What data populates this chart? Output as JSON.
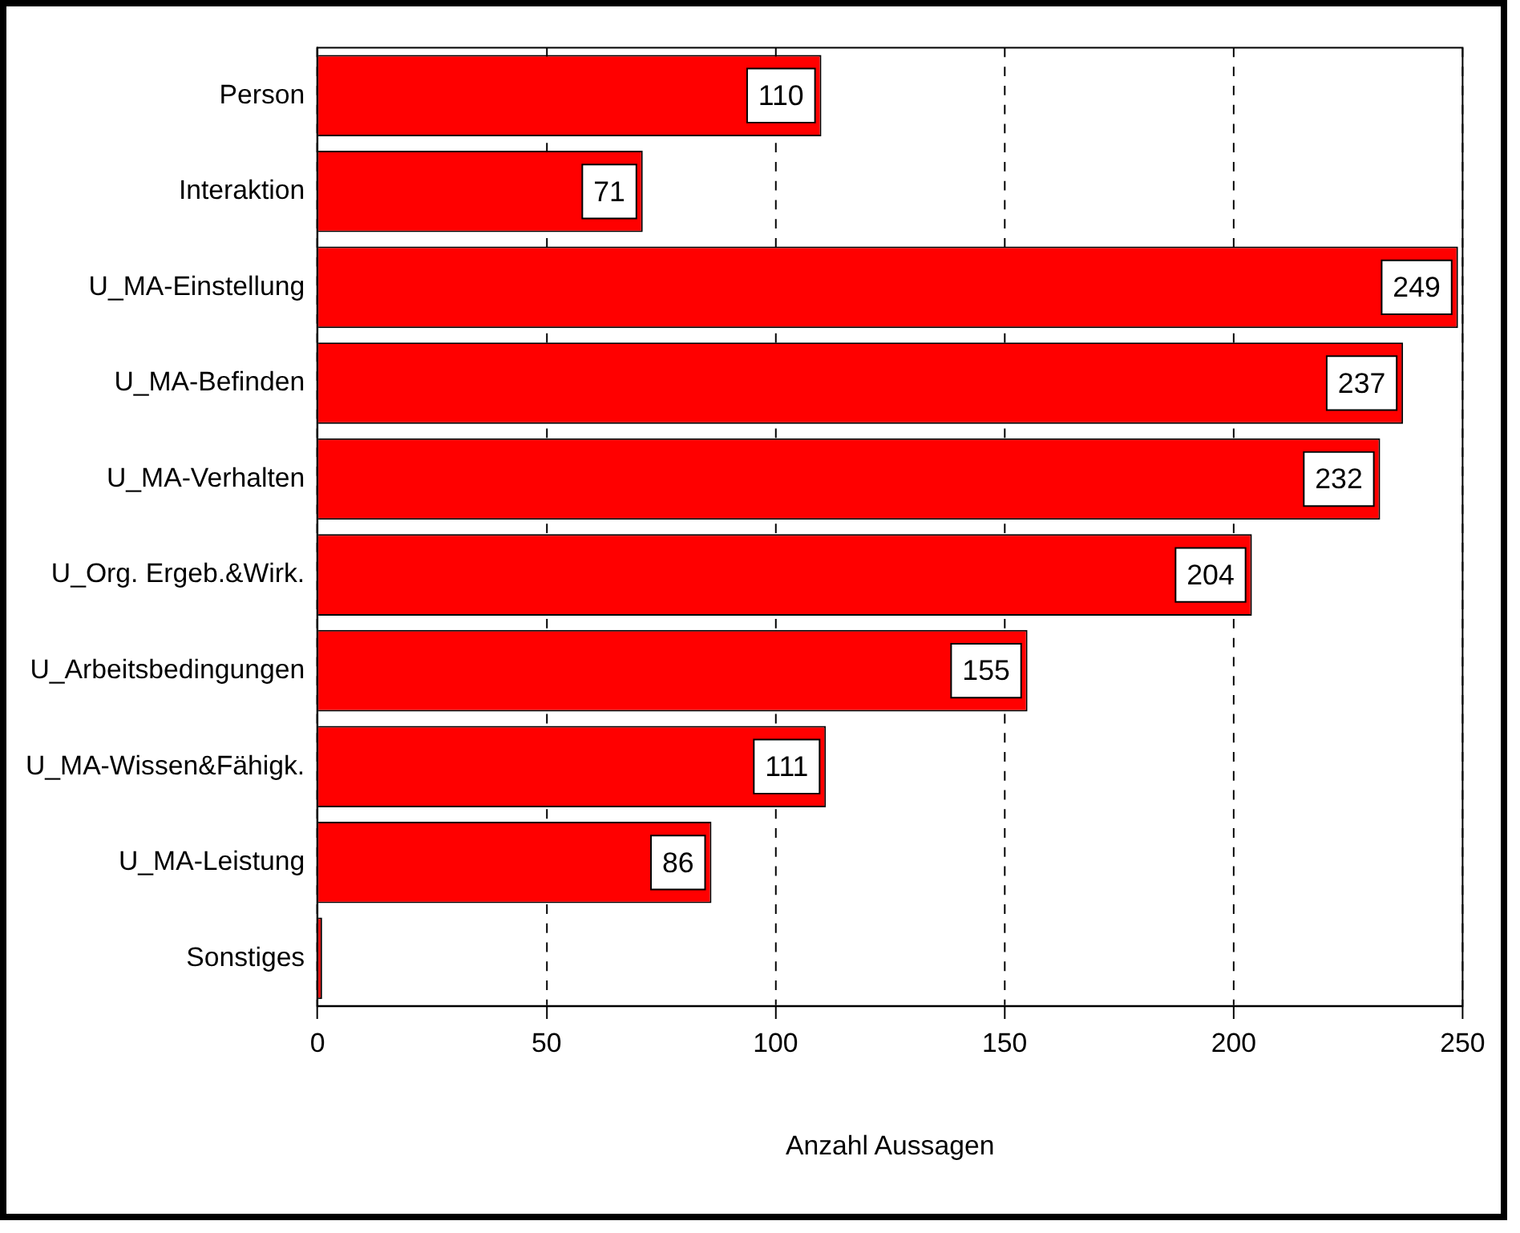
{
  "chart_data": {
    "type": "bar",
    "orientation": "horizontal",
    "xlabel": "Anzahl Aussagen",
    "categories": [
      "Person",
      "Interaktion",
      "U_MA-Einstellung",
      "U_MA-Befinden",
      "U_MA-Verhalten",
      "U_Org. Ergeb.&Wirk.",
      "U_Arbeitsbedingungen",
      "U_MA-Wissen&Fähigk.",
      "U_MA-Leistung",
      "Sonstiges"
    ],
    "values": [
      110,
      71,
      249,
      237,
      232,
      204,
      155,
      111,
      86,
      1
    ],
    "value_labels": [
      "110",
      "71",
      "249",
      "237",
      "232",
      "204",
      "155",
      "111",
      "86",
      null
    ],
    "color": "#ff0000",
    "xlim": [
      0,
      250
    ],
    "xticks": [
      0,
      50,
      100,
      150,
      200,
      250
    ],
    "grid": "x",
    "legend": false
  }
}
